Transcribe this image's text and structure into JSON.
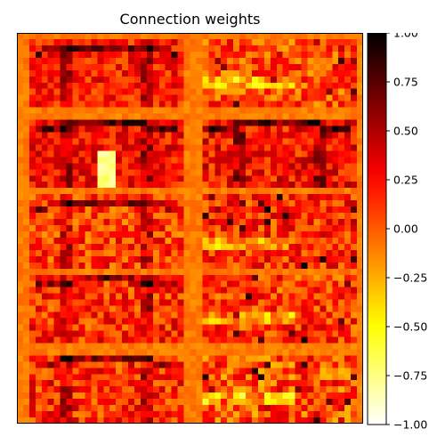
{
  "chart_data": {
    "type": "heatmap",
    "title": "Connection weights",
    "xlabel": "",
    "ylabel": "",
    "colormap": "hot_r",
    "vmin": -1.0,
    "vmax": 1.0,
    "colorbar_ticks": [
      1.0,
      0.75,
      0.5,
      0.25,
      0.0,
      -0.25,
      -0.5,
      -0.75,
      -1.0
    ],
    "colorbar_tick_labels": [
      "1.00",
      "0.75",
      "0.50",
      "0.25",
      "0.00",
      "−0.25",
      "−0.50",
      "−0.75",
      "−1.00"
    ],
    "grid": "5 rows × 2 columns of receptive-field tiles",
    "background_value": -0.1,
    "tiles": [
      {
        "row": 0,
        "col": 0,
        "mean": 0.2,
        "spread": 0.25,
        "shape": "face"
      },
      {
        "row": 0,
        "col": 1,
        "mean": 0.05,
        "spread": 0.3,
        "shape": "blob"
      },
      {
        "row": 1,
        "col": 0,
        "mean": 0.25,
        "spread": 0.25,
        "shape": "face",
        "bright_column": true
      },
      {
        "row": 1,
        "col": 1,
        "mean": 0.25,
        "spread": 0.3,
        "shape": "face"
      },
      {
        "row": 2,
        "col": 0,
        "mean": 0.1,
        "spread": 0.3,
        "shape": "face"
      },
      {
        "row": 2,
        "col": 1,
        "mean": 0.15,
        "spread": 0.3,
        "shape": "blob"
      },
      {
        "row": 3,
        "col": 0,
        "mean": 0.15,
        "spread": 0.3,
        "shape": "face"
      },
      {
        "row": 3,
        "col": 1,
        "mean": 0.1,
        "spread": 0.3,
        "shape": "blob"
      },
      {
        "row": 4,
        "col": 0,
        "mean": 0.15,
        "spread": 0.3,
        "shape": "face"
      },
      {
        "row": 4,
        "col": 1,
        "mean": 0.05,
        "spread": 0.35,
        "shape": "blob"
      }
    ]
  }
}
